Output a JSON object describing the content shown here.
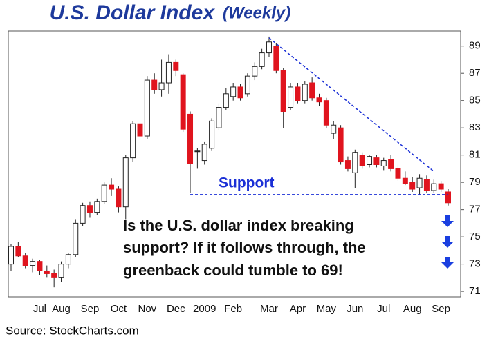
{
  "chart_data": {
    "type": "candlestick",
    "title": "U.S. Dollar Index",
    "subtitle": "(Weekly)",
    "source": "Source: StockCharts.com",
    "support_label": "Support",
    "note": [
      "Is the U.S. dollar index breaking",
      "support? If it follows through, the",
      "greenback could tumble to 69!"
    ],
    "categories": [
      null,
      null,
      null,
      null,
      "Jul",
      null,
      null,
      "Aug",
      null,
      null,
      null,
      "Sep",
      null,
      null,
      null,
      "Oct",
      null,
      null,
      null,
      "Nov",
      null,
      null,
      null,
      "Dec",
      null,
      null,
      null,
      "2009",
      null,
      null,
      null,
      "Feb",
      null,
      null,
      null,
      null,
      "Mar",
      null,
      null,
      null,
      "Apr",
      null,
      null,
      null,
      "May",
      null,
      null,
      null,
      "Jun",
      null,
      null,
      null,
      "Jul",
      null,
      null,
      null,
      "Aug",
      null,
      null,
      null,
      "Sep",
      null
    ],
    "open": [
      73.0,
      74.3,
      73.6,
      72.9,
      73.2,
      72.5,
      72.3,
      72.0,
      73.0,
      73.7,
      76.0,
      77.3,
      76.8,
      77.6,
      78.8,
      78.5,
      77.2,
      80.8,
      83.3,
      82.4,
      86.5,
      85.8,
      86.3,
      87.8,
      86.9,
      84.0,
      81.3,
      80.6,
      81.5,
      83.0,
      84.5,
      85.3,
      86.0,
      85.5,
      86.8,
      87.5,
      88.5,
      89.0,
      87.2,
      84.5,
      86.0,
      85.0,
      86.3,
      85.2,
      85.0,
      82.6,
      83.0,
      80.6,
      79.7,
      81.0,
      80.3,
      80.8,
      80.2,
      80.7,
      80.0,
      79.3,
      79.0,
      78.6,
      79.2,
      78.4,
      78.9,
      78.3
    ],
    "high": [
      74.5,
      74.6,
      73.8,
      73.4,
      73.3,
      72.9,
      72.6,
      73.2,
      73.8,
      76.3,
      77.5,
      77.6,
      77.8,
      79.0,
      79.3,
      78.7,
      81.0,
      83.5,
      83.8,
      86.8,
      87.0,
      88.0,
      88.4,
      88.0,
      87.0,
      84.2,
      81.5,
      82.0,
      83.7,
      84.8,
      85.9,
      86.3,
      86.2,
      87.0,
      87.8,
      88.8,
      89.7,
      89.2,
      87.4,
      86.3,
      86.3,
      86.4,
      86.7,
      85.5,
      85.2,
      83.5,
      83.2,
      80.9,
      81.4,
      81.2,
      81.0,
      81.0,
      80.8,
      81.0,
      80.3,
      79.8,
      79.4,
      79.6,
      79.5,
      79.2,
      79.1,
      78.5
    ],
    "low": [
      72.5,
      73.5,
      72.7,
      72.4,
      72.2,
      72.0,
      71.3,
      71.7,
      72.7,
      73.5,
      75.8,
      76.4,
      76.6,
      77.4,
      78.0,
      76.8,
      76.3,
      80.5,
      82.0,
      82.2,
      85.5,
      85.3,
      85.5,
      86.8,
      82.7,
      78.2,
      80.0,
      80.3,
      81.3,
      82.8,
      84.3,
      85.0,
      85.0,
      85.3,
      86.5,
      87.3,
      88.2,
      87.0,
      83.0,
      84.3,
      84.8,
      84.8,
      85.0,
      84.6,
      83.0,
      82.2,
      80.3,
      79.8,
      78.6,
      80.0,
      80.1,
      80.1,
      79.9,
      79.8,
      79.1,
      78.8,
      78.3,
      78.1,
      78.2,
      78.2,
      78.3,
      77.3
    ],
    "close": [
      74.3,
      73.6,
      72.9,
      73.2,
      72.5,
      72.3,
      72.0,
      73.0,
      73.7,
      76.0,
      77.3,
      76.8,
      77.6,
      78.8,
      78.5,
      77.2,
      80.8,
      83.3,
      82.4,
      86.5,
      85.8,
      86.3,
      87.8,
      87.2,
      82.9,
      80.4,
      81.3,
      81.8,
      83.5,
      84.5,
      85.5,
      86.0,
      85.2,
      86.8,
      87.5,
      88.5,
      89.3,
      87.2,
      84.2,
      86.0,
      85.0,
      86.2,
      85.2,
      84.9,
      83.2,
      83.2,
      80.5,
      80.0,
      81.2,
      80.2,
      80.9,
      80.3,
      80.6,
      80.0,
      79.3,
      78.9,
      78.5,
      79.3,
      78.4,
      78.9,
      78.5,
      77.5
    ],
    "up_color": "#ffffff",
    "down_color": "#e0141e",
    "support": {
      "x": [
        25,
        61
      ],
      "y": [
        78.1,
        78.1
      ],
      "color": "#1a2fd6"
    },
    "resistance": {
      "x": [
        36,
        59
      ],
      "y": [
        89.6,
        79.8
      ],
      "color": "#1a2fd6"
    },
    "ylim": [
      70.6,
      90.1
    ],
    "yticks": [
      71,
      73,
      75,
      77,
      79,
      81,
      83,
      85,
      87,
      89
    ]
  }
}
